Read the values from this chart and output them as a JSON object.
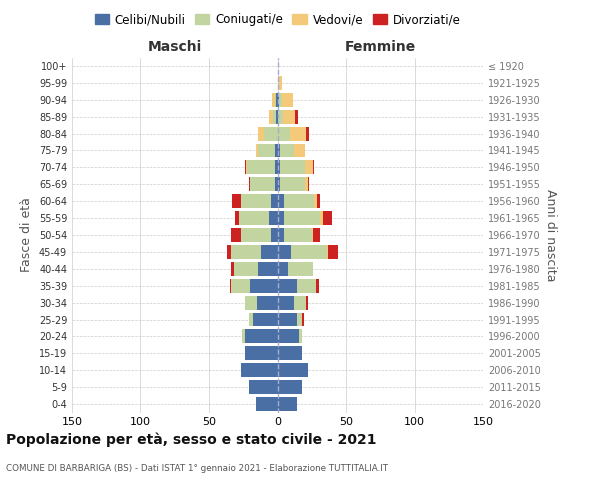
{
  "age_groups": [
    "0-4",
    "5-9",
    "10-14",
    "15-19",
    "20-24",
    "25-29",
    "30-34",
    "35-39",
    "40-44",
    "45-49",
    "50-54",
    "55-59",
    "60-64",
    "65-69",
    "70-74",
    "75-79",
    "80-84",
    "85-89",
    "90-94",
    "95-99",
    "100+"
  ],
  "birth_years": [
    "2016-2020",
    "2011-2015",
    "2006-2010",
    "2001-2005",
    "1996-2000",
    "1991-1995",
    "1986-1990",
    "1981-1985",
    "1976-1980",
    "1971-1975",
    "1966-1970",
    "1961-1965",
    "1956-1960",
    "1951-1955",
    "1946-1950",
    "1941-1945",
    "1936-1940",
    "1931-1935",
    "1926-1930",
    "1921-1925",
    "≤ 1920"
  ],
  "maschi": {
    "celibi": [
      16,
      21,
      27,
      24,
      24,
      18,
      15,
      20,
      14,
      12,
      5,
      6,
      5,
      2,
      2,
      2,
      0,
      1,
      1,
      0,
      0
    ],
    "coniugati": [
      0,
      0,
      0,
      0,
      2,
      3,
      9,
      14,
      18,
      22,
      22,
      22,
      22,
      18,
      20,
      12,
      10,
      2,
      1,
      0,
      0
    ],
    "vedovi": [
      0,
      0,
      0,
      0,
      0,
      0,
      0,
      0,
      0,
      0,
      0,
      0,
      0,
      0,
      1,
      2,
      4,
      3,
      2,
      0,
      0
    ],
    "divorziati": [
      0,
      0,
      0,
      0,
      0,
      0,
      0,
      1,
      2,
      3,
      7,
      3,
      6,
      1,
      1,
      0,
      0,
      0,
      0,
      0,
      0
    ]
  },
  "femmine": {
    "nubili": [
      14,
      18,
      22,
      18,
      16,
      14,
      12,
      14,
      8,
      10,
      5,
      5,
      5,
      2,
      2,
      2,
      0,
      0,
      1,
      0,
      0
    ],
    "coniugate": [
      0,
      0,
      0,
      0,
      2,
      4,
      9,
      14,
      18,
      26,
      20,
      26,
      22,
      18,
      18,
      10,
      9,
      4,
      2,
      1,
      0
    ],
    "vedove": [
      0,
      0,
      0,
      0,
      0,
      0,
      0,
      0,
      0,
      1,
      1,
      2,
      2,
      2,
      6,
      8,
      12,
      9,
      8,
      2,
      0
    ],
    "divorziate": [
      0,
      0,
      0,
      0,
      0,
      1,
      1,
      2,
      0,
      7,
      5,
      7,
      2,
      1,
      1,
      0,
      2,
      2,
      0,
      0,
      0
    ]
  },
  "colors": {
    "celibi": "#4a6fa5",
    "coniugati": "#c2d4a0",
    "vedovi": "#f5c97a",
    "divorziati": "#cc2222"
  },
  "title": "Popolazione per età, sesso e stato civile - 2021",
  "subtitle": "COMUNE DI BARBARIGA (BS) - Dati ISTAT 1° gennaio 2021 - Elaborazione TUTTITALIA.IT",
  "xlabel_left": "Maschi",
  "xlabel_right": "Femmine",
  "ylabel_left": "Fasce di età",
  "ylabel_right": "Anni di nascita",
  "xlim": 150,
  "legend_labels": [
    "Celibi/Nubili",
    "Coniugati/e",
    "Vedovi/e",
    "Divorziati/e"
  ],
  "bg_color": "#ffffff",
  "grid_color": "#cccccc"
}
